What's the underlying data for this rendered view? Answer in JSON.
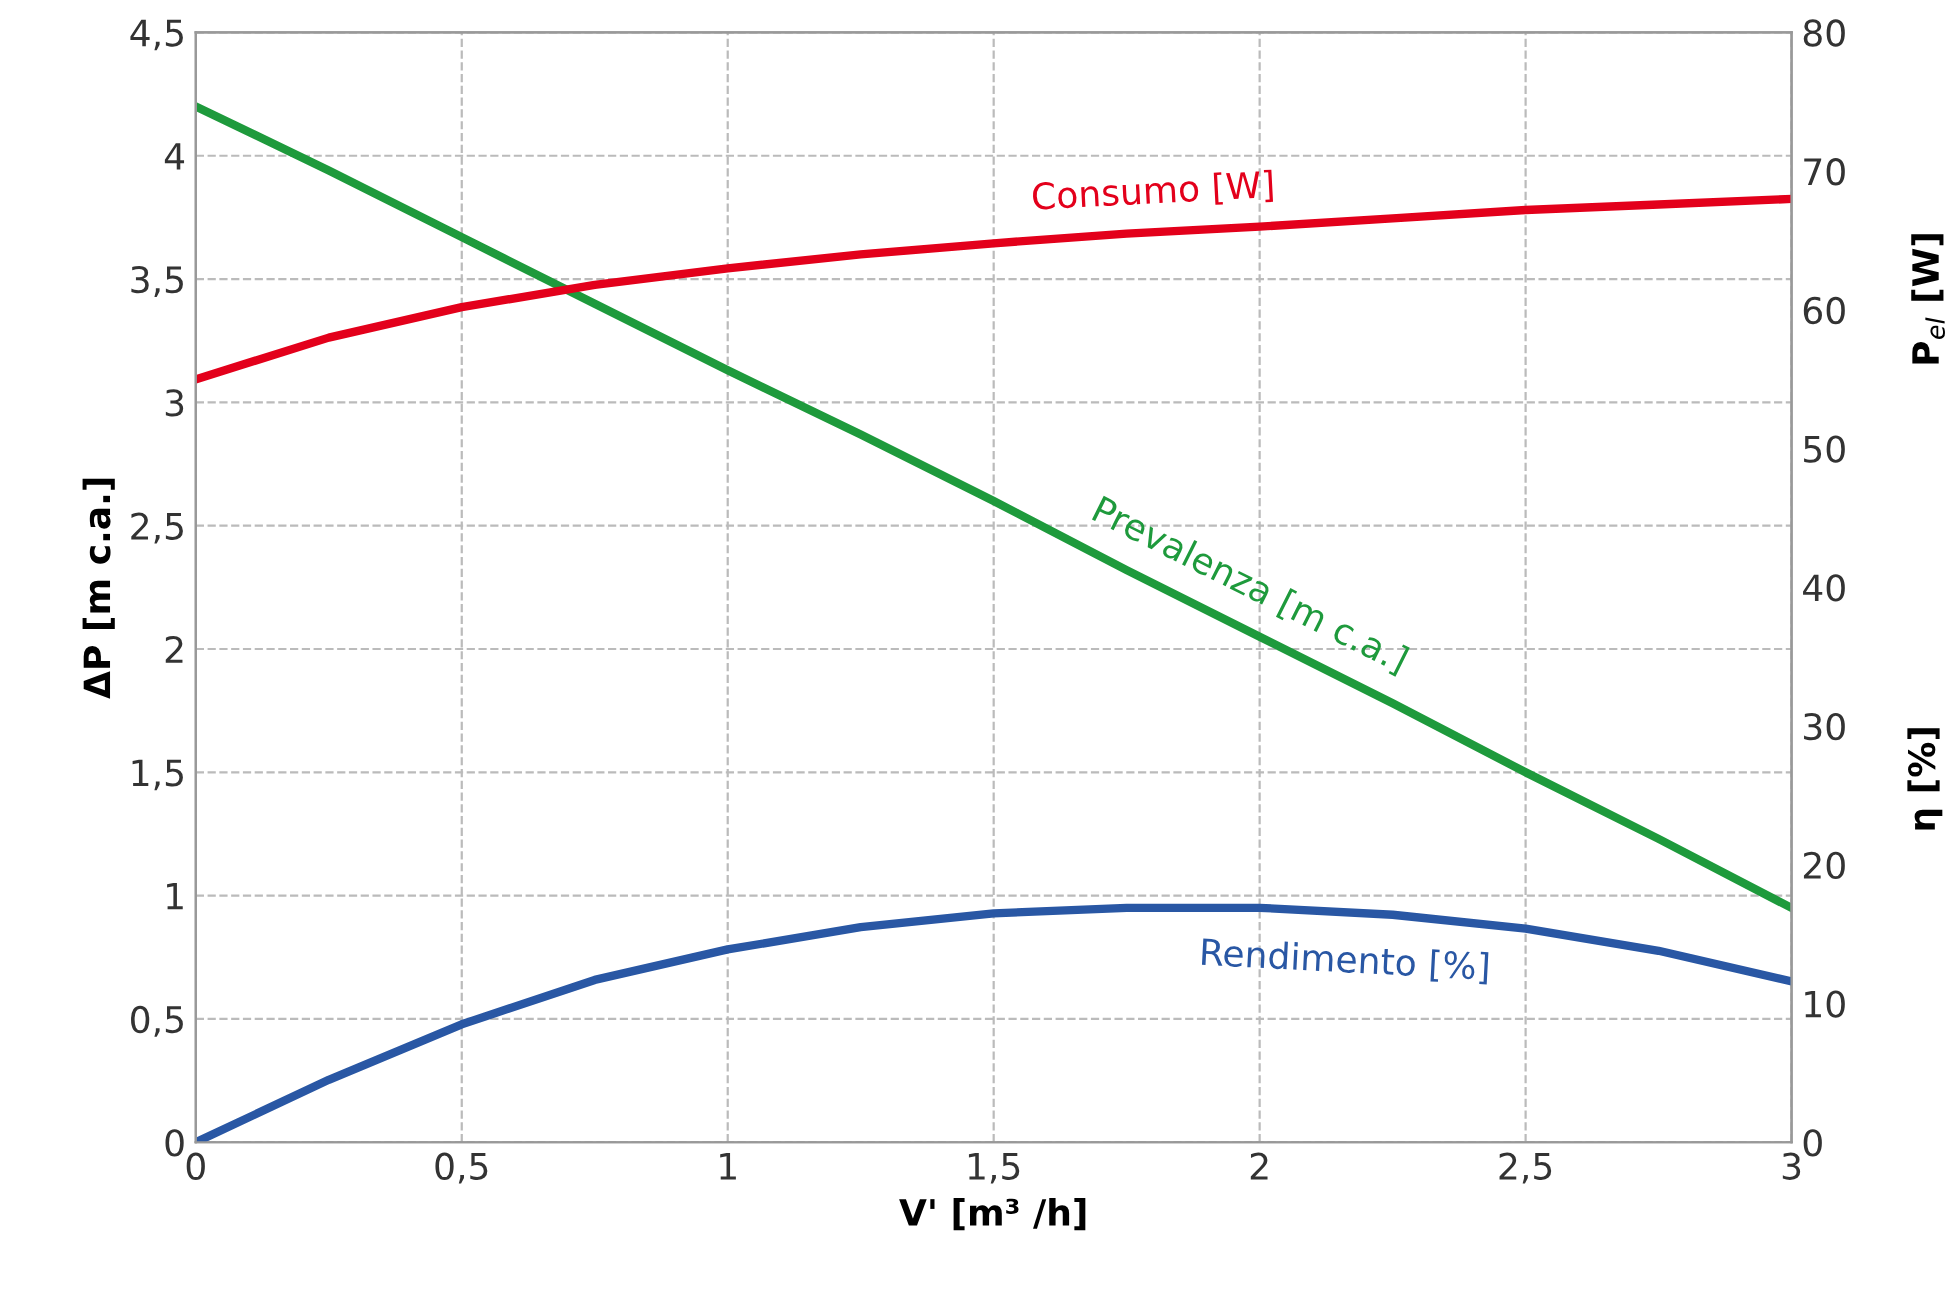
{
  "chart_data": {
    "type": "line",
    "xlabel": "V' [m³ /h]",
    "ylabel": "ΔP [m c.a.]",
    "y2label": "P$_{el}$ [W]",
    "annotations": [
      "η [%]"
    ],
    "x": [
      0,
      0.25,
      0.5,
      0.75,
      1,
      1.25,
      1.5,
      1.75,
      2,
      2.25,
      2.5,
      2.75,
      3
    ],
    "series": [
      {
        "name": "Consumo [W]",
        "color": "#e3001b",
        "axis": "y2",
        "values": [
          55,
          58,
          60.2,
          61.8,
          63,
          64,
          64.8,
          65.5,
          66,
          66.6,
          67.2,
          67.6,
          68
        ]
      },
      {
        "name": "Prevalenza [m c.a.]",
        "color": "#1e9a3c",
        "values": [
          4.2,
          3.94,
          3.67,
          3.4,
          3.13,
          2.87,
          2.6,
          2.32,
          2.05,
          1.78,
          1.5,
          1.23,
          0.95
        ]
      },
      {
        "name": "Rendimento [%]",
        "color": "#2957a4",
        "axis": "y2",
        "values": [
          0,
          4.5,
          8.5,
          11.7,
          13.9,
          15.5,
          16.5,
          16.9,
          16.9,
          16.4,
          15.4,
          13.8,
          11.6
        ]
      }
    ],
    "xlim": [
      0,
      3
    ],
    "xticks": [
      0,
      {
        "value": 0.5,
        "label": "0,5"
      },
      1,
      {
        "value": 1.5,
        "label": "1,5"
      },
      2,
      {
        "value": 2.5,
        "label": "2,5"
      },
      3
    ],
    "ylim": [
      0,
      4.5
    ],
    "yticks": [
      0,
      {
        "value": 0.5,
        "label": "0,5"
      },
      1,
      {
        "value": 1.5,
        "label": "1,5"
      },
      2,
      {
        "value": 2.5,
        "label": "2,5"
      },
      3,
      {
        "value": 3.5,
        "label": "3,5"
      },
      4,
      {
        "value": 4.5,
        "label": "4,5"
      }
    ],
    "y2lim": [
      0,
      80
    ],
    "y2ticks": [
      0,
      10,
      20,
      30,
      40,
      50,
      60,
      70,
      80
    ],
    "grid": true,
    "legend": false,
    "line_style": "solid"
  }
}
